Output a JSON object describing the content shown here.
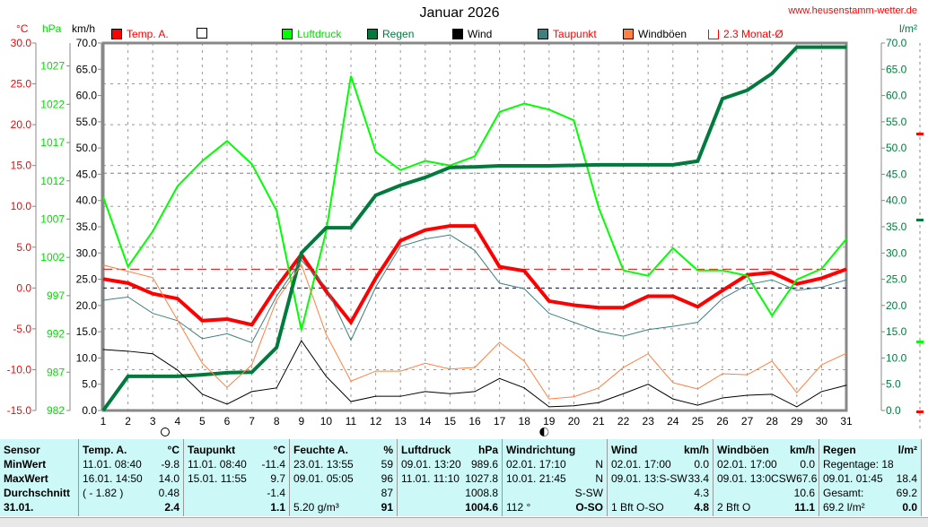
{
  "header": {
    "title": "Januar 2026",
    "url": "www.heusenstamm-wetter.de",
    "unit_c": "°C",
    "unit_hpa": "hPa",
    "unit_kmh": "km/h",
    "unit_lm2": "l/m²"
  },
  "legend": [
    {
      "label": "Temp. A.",
      "color": "#ff0000",
      "text_color": "#ff0000"
    },
    {
      "label": "",
      "color": "#ffffff",
      "text_color": "#000000"
    },
    {
      "label": "Luftdruck",
      "color": "#00ff00",
      "text_color": "#00dd00"
    },
    {
      "label": "Regen",
      "color": "#007a3d",
      "text_color": "#007a3d"
    },
    {
      "label": "Wind",
      "color": "#000000",
      "text_color": "#000000"
    },
    {
      "label": "Taupunkt",
      "color": "#3f7f7f",
      "text_color": "#ff0000"
    },
    {
      "label": "Windböen",
      "color": "#ff8040",
      "text_color": "#000000"
    },
    {
      "label": "2.3 Monat-Ø",
      "color": "#ffffff",
      "text_color": "#ff0000"
    }
  ],
  "chart_data": {
    "type": "line",
    "title": "Januar 2026",
    "x": [
      1,
      2,
      3,
      4,
      5,
      6,
      7,
      8,
      9,
      10,
      11,
      12,
      13,
      14,
      15,
      16,
      17,
      18,
      19,
      20,
      21,
      22,
      23,
      24,
      25,
      26,
      27,
      28,
      29,
      30,
      31
    ],
    "axes": {
      "celsius": {
        "range": [
          -15,
          30
        ],
        "ticks": [
          "30.0",
          "25.0",
          "20.0",
          "15.0",
          "10.0",
          "5.0",
          "0.0",
          "-5.0",
          "-10.0",
          "-15.0"
        ]
      },
      "hpa": {
        "range": [
          982,
          1030
        ],
        "ticks": [
          "1027",
          "1022",
          "1017",
          "1012",
          "1007",
          "1002",
          "997",
          "992",
          "987",
          "982"
        ]
      },
      "kmh": {
        "range": [
          0,
          70
        ],
        "ticks": [
          "70.0",
          "65.0",
          "60.0",
          "55.0",
          "50.0",
          "45.0",
          "40.0",
          "35.0",
          "30.0",
          "25.0",
          "20.0",
          "15.0",
          "10.0",
          "5.0",
          "0.0"
        ]
      },
      "lm2": {
        "range": [
          0,
          70
        ],
        "ticks": [
          "70.0",
          "65.0",
          "60.0",
          "55.0",
          "50.0",
          "45.0",
          "40.0",
          "35.0",
          "30.0",
          "25.0",
          "20.0",
          "15.0",
          "10.0",
          "5.0",
          "0.0"
        ]
      }
    },
    "series": [
      {
        "name": "Temp. A.",
        "axis": "celsius",
        "color": "#ff0000",
        "width": 4,
        "values": [
          1.1,
          0.6,
          -0.7,
          -1.3,
          -4.0,
          -3.8,
          -4.5,
          0.1,
          4.1,
          -0.4,
          -4.2,
          1.2,
          5.8,
          7.1,
          7.6,
          7.6,
          2.6,
          2.1,
          -1.6,
          -2.1,
          -2.4,
          -2.4,
          -1.0,
          -1.0,
          -2.3,
          -0.3,
          1.6,
          1.9,
          0.5,
          1.2,
          2.3
        ]
      },
      {
        "name": "Luftdruck",
        "axis": "hpa",
        "color": "#00ff00",
        "width": 2,
        "values": [
          1009.9,
          1000.8,
          1005.4,
          1011.3,
          1014.6,
          1017.2,
          1014.2,
          1008.1,
          992.5,
          1005.4,
          1025.7,
          1015.8,
          1013.4,
          1014.6,
          1014.0,
          1015.2,
          1021.0,
          1022.1,
          1021.3,
          1019.9,
          1008.5,
          1000.3,
          999.6,
          1003.2,
          1000.3,
          1000.3,
          999.6,
          994.4,
          999.1,
          1000.5,
          1004.4
        ]
      },
      {
        "name": "Regen",
        "axis": "lm2",
        "color": "#007a3d",
        "width": 4,
        "values": [
          0,
          6.5,
          6.5,
          6.5,
          6.8,
          7.2,
          7.3,
          12.0,
          30.0,
          34.8,
          34.8,
          41.0,
          42.9,
          44.4,
          46.3,
          46.4,
          46.6,
          46.6,
          46.6,
          46.7,
          46.8,
          46.8,
          46.8,
          46.8,
          47.5,
          59.4,
          61.0,
          64.2,
          69.2,
          69.2,
          69.2
        ]
      },
      {
        "name": "Taupunkt",
        "axis": "celsius",
        "color": "#3f7f7f",
        "width": 1,
        "values": [
          -1.5,
          -1.1,
          -3.1,
          -4.0,
          -6.2,
          -5.6,
          -6.7,
          -1.0,
          3.4,
          0.1,
          -6.4,
          0.1,
          5.1,
          6.0,
          6.5,
          4.6,
          0.6,
          -0.1,
          -3.1,
          -4.2,
          -5.3,
          -5.9,
          -5.1,
          -4.7,
          -4.2,
          -1.3,
          0.4,
          1.0,
          -0.3,
          0.1,
          1.0
        ]
      },
      {
        "name": "Windböen",
        "axis": "kmh",
        "color": "#ff8040",
        "width": 1,
        "values": [
          27.7,
          26.5,
          25.3,
          17.2,
          9.0,
          4.4,
          8.7,
          21.0,
          27.8,
          14.5,
          5.6,
          7.5,
          7.5,
          9.0,
          7.9,
          8.2,
          13.0,
          9.4,
          2.2,
          2.6,
          4.3,
          8.2,
          10.8,
          5.3,
          4.1,
          7.0,
          6.8,
          9.4,
          3.4,
          8.7,
          10.9
        ]
      },
      {
        "name": "Wind",
        "axis": "kmh",
        "color": "#000000",
        "width": 1,
        "values": [
          11.6,
          11.3,
          10.8,
          7.7,
          3.1,
          1.2,
          3.6,
          4.3,
          13.3,
          6.5,
          1.7,
          2.7,
          2.7,
          3.6,
          3.2,
          3.6,
          6.1,
          4.3,
          0.7,
          0.9,
          1.5,
          3.2,
          5.0,
          2.2,
          1.0,
          2.4,
          2.9,
          3.1,
          0.7,
          3.6,
          4.8
        ]
      }
    ],
    "reference_lines": [
      {
        "name": "2.3 Monat-Ø",
        "axis": "celsius",
        "value": 2.3,
        "color": "#ff0000"
      },
      {
        "name": "0 °C",
        "axis": "celsius",
        "value": 0,
        "color": "#0000ff"
      },
      {
        "name": "1013 hPa",
        "axis": "hpa",
        "value": 1013,
        "color": "#808080"
      }
    ],
    "moon_phases": [
      {
        "day": 3.5,
        "phase": "full"
      },
      {
        "day": 18.8,
        "phase": "new"
      }
    ],
    "grid": true,
    "legend_position": "top"
  },
  "table": {
    "columns": [
      {
        "head": [
          "Sensor",
          ""
        ],
        "rows": [
          [
            "MinWert",
            ""
          ],
          [
            "MaxWert",
            ""
          ],
          [
            "Durchschnitt",
            ""
          ],
          [
            "31.01.",
            ""
          ]
        ],
        "bold_label": true
      },
      {
        "head": [
          "Temp. A.",
          "°C"
        ],
        "rows": [
          [
            "11.01.  08:40",
            "-9.8"
          ],
          [
            "16.01.  14:50",
            "14.0"
          ],
          [
            "( - 1.82 )",
            "0.48"
          ],
          [
            "",
            "2.4"
          ]
        ]
      },
      {
        "head": [
          "Taupunkt",
          "°C"
        ],
        "rows": [
          [
            "11.01.  08:40",
            "-11.4"
          ],
          [
            "15.01.  11:55",
            "9.7"
          ],
          [
            "",
            "-1.4"
          ],
          [
            "",
            "1.1"
          ]
        ]
      },
      {
        "head": [
          "Feuchte A.",
          "%"
        ],
        "rows": [
          [
            "23.01.  13:55",
            "59"
          ],
          [
            "09.01.  05:05",
            "96"
          ],
          [
            "",
            "87"
          ],
          [
            "5.20 g/m³",
            "91"
          ]
        ]
      },
      {
        "head": [
          "Luftdruck",
          "hPa"
        ],
        "rows": [
          [
            "09.01.  13:20",
            "989.6"
          ],
          [
            "11.01.  11:10",
            "1027.8"
          ],
          [
            "",
            "1008.8"
          ],
          [
            "",
            "1004.6"
          ]
        ]
      },
      {
        "head": [
          "Windrichtung",
          ""
        ],
        "rows": [
          [
            "02.01.  17:10",
            "N"
          ],
          [
            "10.01.  21:45",
            "N"
          ],
          [
            "",
            "S-SW"
          ],
          [
            "112 °",
            "O-SO"
          ]
        ]
      },
      {
        "head": [
          "Wind",
          "km/h"
        ],
        "rows": [
          [
            "02.01.  17:00",
            "0.0"
          ],
          [
            "09.01.  13:S-SW",
            "33.4"
          ],
          [
            "",
            "4.3"
          ],
          [
            "1 Bft O-SO",
            "4.8"
          ]
        ]
      },
      {
        "head": [
          "Windböen",
          "km/h"
        ],
        "rows": [
          [
            "02.01.  17:00",
            "0.0"
          ],
          [
            "09.01.  13:0CSW",
            "67.6"
          ],
          [
            "",
            "10.6"
          ],
          [
            "2 Bft O",
            "11.1"
          ]
        ]
      },
      {
        "head": [
          "Regen",
          "l/m²"
        ],
        "rows": [
          [
            "Regentage: 18",
            ""
          ],
          [
            "09.01.  01:45",
            "18.4"
          ],
          [
            "Gesamt:",
            "69.2"
          ],
          [
            "69.2 l/m²",
            "0.0"
          ]
        ]
      }
    ]
  }
}
